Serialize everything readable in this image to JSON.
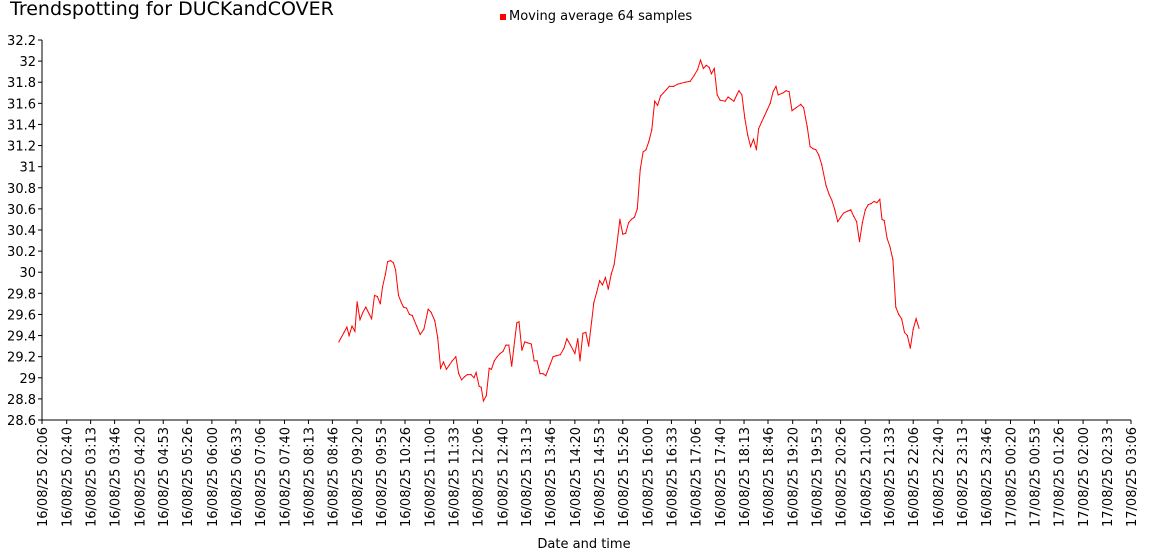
{
  "colors": {
    "series": "#ff0000",
    "axis": "#000000",
    "background": "#ffffff"
  },
  "chart_data": {
    "type": "line",
    "title": "Trendspotting for DUCKandCOVER",
    "xlabel": "Date and time",
    "ylabel": "",
    "ylim": [
      28.6,
      32.2
    ],
    "grid": false,
    "legend_position": "top",
    "yticks": [
      "28.6",
      "28.8",
      "29",
      "29.2",
      "29.4",
      "29.6",
      "29.8",
      "30",
      "30.2",
      "30.4",
      "30.6",
      "30.8",
      "31",
      "31.2",
      "31.4",
      "31.6",
      "31.8",
      "32",
      "32.2"
    ],
    "xticks": [
      "16/08/25 02:06",
      "16/08/25 02:40",
      "16/08/25 03:13",
      "16/08/25 03:46",
      "16/08/25 04:20",
      "16/08/25 04:53",
      "16/08/25 05:26",
      "16/08/25 06:00",
      "16/08/25 06:33",
      "16/08/25 07:06",
      "16/08/25 07:40",
      "16/08/25 08:13",
      "16/08/25 08:46",
      "16/08/25 09:20",
      "16/08/25 09:53",
      "16/08/25 10:26",
      "16/08/25 11:00",
      "16/08/25 11:33",
      "16/08/25 12:06",
      "16/08/25 12:40",
      "16/08/25 13:13",
      "16/08/25 13:46",
      "16/08/25 14:20",
      "16/08/25 14:53",
      "16/08/25 15:26",
      "16/08/25 16:00",
      "16/08/25 16:33",
      "16/08/25 17:06",
      "16/08/25 17:40",
      "16/08/25 18:13",
      "16/08/25 18:46",
      "16/08/25 19:20",
      "16/08/25 19:53",
      "16/08/25 20:26",
      "16/08/25 21:00",
      "16/08/25 21:33",
      "16/08/25 22:06",
      "16/08/25 22:40",
      "16/08/25 23:13",
      "16/08/25 23:46",
      "17/08/25 00:20",
      "17/08/25 00:53",
      "17/08/25 01:26",
      "17/08/25 02:00",
      "17/08/25 02:33",
      "17/08/25 03:06"
    ],
    "series": [
      {
        "name": "Moving average 64 samples",
        "color": "#ff0000",
        "points": [
          [
            "16/08/25 08:55",
            29.34
          ],
          [
            "16/08/25 09:02",
            29.43
          ],
          [
            "16/08/25 09:06",
            29.48
          ],
          [
            "16/08/25 09:09",
            29.4
          ],
          [
            "16/08/25 09:13",
            29.49
          ],
          [
            "16/08/25 09:17",
            29.44
          ],
          [
            "16/08/25 09:20",
            29.72
          ],
          [
            "16/08/25 09:24",
            29.55
          ],
          [
            "16/08/25 09:28",
            29.62
          ],
          [
            "16/08/25 09:32",
            29.67
          ],
          [
            "16/08/25 09:37",
            29.6
          ],
          [
            "16/08/25 09:40",
            29.56
          ],
          [
            "16/08/25 09:44",
            29.78
          ],
          [
            "16/08/25 09:48",
            29.77
          ],
          [
            "16/08/25 09:52",
            29.7
          ],
          [
            "16/08/25 09:55",
            29.86
          ],
          [
            "16/08/25 09:59",
            29.98
          ],
          [
            "16/08/25 10:02",
            30.1
          ],
          [
            "16/08/25 10:06",
            30.11
          ],
          [
            "16/08/25 10:10",
            30.09
          ],
          [
            "16/08/25 10:13",
            30.02
          ],
          [
            "16/08/25 10:17",
            29.78
          ],
          [
            "16/08/25 10:21",
            29.71
          ],
          [
            "16/08/25 10:24",
            29.67
          ],
          [
            "16/08/25 10:28",
            29.66
          ],
          [
            "16/08/25 10:32",
            29.6
          ],
          [
            "16/08/25 10:36",
            29.59
          ],
          [
            "16/08/25 10:42",
            29.49
          ],
          [
            "16/08/25 10:47",
            29.41
          ],
          [
            "16/08/25 10:52",
            29.46
          ],
          [
            "16/08/25 10:58",
            29.65
          ],
          [
            "16/08/25 11:02",
            29.62
          ],
          [
            "16/08/25 11:07",
            29.54
          ],
          [
            "16/08/25 11:11",
            29.38
          ],
          [
            "16/08/25 11:15",
            29.09
          ],
          [
            "16/08/25 11:19",
            29.15
          ],
          [
            "16/08/25 11:23",
            29.08
          ],
          [
            "16/08/25 11:27",
            29.12
          ],
          [
            "16/08/25 11:31",
            29.16
          ],
          [
            "16/08/25 11:36",
            29.2
          ],
          [
            "16/08/25 11:40",
            29.04
          ],
          [
            "16/08/25 11:44",
            28.98
          ],
          [
            "16/08/25 11:48",
            29.01
          ],
          [
            "16/08/25 11:52",
            29.03
          ],
          [
            "16/08/25 11:57",
            29.03
          ],
          [
            "16/08/25 12:01",
            29.0
          ],
          [
            "16/08/25 12:04",
            29.05
          ],
          [
            "16/08/25 12:08",
            28.92
          ],
          [
            "16/08/25 12:11",
            28.91
          ],
          [
            "16/08/25 12:14",
            28.78
          ],
          [
            "16/08/25 12:18",
            28.83
          ],
          [
            "16/08/25 12:22",
            29.09
          ],
          [
            "16/08/25 12:25",
            29.08
          ],
          [
            "16/08/25 12:29",
            29.16
          ],
          [
            "16/08/25 12:33",
            29.2
          ],
          [
            "16/08/25 12:37",
            29.23
          ],
          [
            "16/08/25 12:41",
            29.25
          ],
          [
            "16/08/25 12:45",
            29.31
          ],
          [
            "16/08/25 12:49",
            29.31
          ],
          [
            "16/08/25 12:53",
            29.11
          ],
          [
            "16/08/25 12:56",
            29.29
          ],
          [
            "16/08/25 13:00",
            29.52
          ],
          [
            "16/08/25 13:03",
            29.53
          ],
          [
            "16/08/25 13:07",
            29.26
          ],
          [
            "16/08/25 13:11",
            29.34
          ],
          [
            "16/08/25 13:15",
            29.33
          ],
          [
            "16/08/25 13:20",
            29.32
          ],
          [
            "16/08/25 13:24",
            29.16
          ],
          [
            "16/08/25 13:28",
            29.16
          ],
          [
            "16/08/25 13:32",
            29.04
          ],
          [
            "16/08/25 13:36",
            29.04
          ],
          [
            "16/08/25 13:40",
            29.02
          ],
          [
            "16/08/25 13:44",
            29.09
          ],
          [
            "16/08/25 13:50",
            29.2
          ],
          [
            "16/08/25 13:55",
            29.21
          ],
          [
            "16/08/25 14:00",
            29.22
          ],
          [
            "16/08/25 14:05",
            29.28
          ],
          [
            "16/08/25 14:09",
            29.37
          ],
          [
            "16/08/25 14:14",
            29.31
          ],
          [
            "16/08/25 14:20",
            29.23
          ],
          [
            "16/08/25 14:24",
            29.37
          ],
          [
            "16/08/25 14:27",
            29.16
          ],
          [
            "16/08/25 14:31",
            29.42
          ],
          [
            "16/08/25 14:35",
            29.43
          ],
          [
            "16/08/25 14:39",
            29.3
          ],
          [
            "16/08/25 14:43",
            29.53
          ],
          [
            "16/08/25 14:46",
            29.71
          ],
          [
            "16/08/25 14:50",
            29.81
          ],
          [
            "16/08/25 14:54",
            29.92
          ],
          [
            "16/08/25 14:58",
            29.88
          ],
          [
            "16/08/25 15:02",
            29.95
          ],
          [
            "16/08/25 15:06",
            29.84
          ],
          [
            "16/08/25 15:10",
            29.98
          ],
          [
            "16/08/25 15:14",
            30.07
          ],
          [
            "16/08/25 15:18",
            30.27
          ],
          [
            "16/08/25 15:22",
            30.5
          ],
          [
            "16/08/25 15:26",
            30.36
          ],
          [
            "16/08/25 15:30",
            30.37
          ],
          [
            "16/08/25 15:34",
            30.47
          ],
          [
            "16/08/25 15:38",
            30.5
          ],
          [
            "16/08/25 15:42",
            30.52
          ],
          [
            "16/08/25 15:46",
            30.6
          ],
          [
            "16/08/25 15:50",
            30.97
          ],
          [
            "16/08/25 15:54",
            31.14
          ],
          [
            "16/08/25 15:58",
            31.16
          ],
          [
            "16/08/25 16:02",
            31.24
          ],
          [
            "16/08/25 16:06",
            31.35
          ],
          [
            "16/08/25 16:10",
            31.62
          ],
          [
            "16/08/25 16:14",
            31.58
          ],
          [
            "16/08/25 16:18",
            31.67
          ],
          [
            "16/08/25 16:22",
            31.7
          ],
          [
            "16/08/25 16:26",
            31.73
          ],
          [
            "16/08/25 16:30",
            31.76
          ],
          [
            "16/08/25 16:36",
            31.76
          ],
          [
            "16/08/25 16:41",
            31.78
          ],
          [
            "16/08/25 16:46",
            31.79
          ],
          [
            "16/08/25 16:52",
            31.8
          ],
          [
            "16/08/25 16:59",
            31.81
          ],
          [
            "16/08/25 17:04",
            31.86
          ],
          [
            "16/08/25 17:09",
            31.92
          ],
          [
            "16/08/25 17:13",
            32.01
          ],
          [
            "16/08/25 17:17",
            31.93
          ],
          [
            "16/08/25 17:21",
            31.96
          ],
          [
            "16/08/25 17:25",
            31.94
          ],
          [
            "16/08/25 17:28",
            31.88
          ],
          [
            "16/08/25 17:32",
            31.93
          ],
          [
            "16/08/25 17:36",
            31.68
          ],
          [
            "16/08/25 17:40",
            31.63
          ],
          [
            "16/08/25 17:47",
            31.62
          ],
          [
            "16/08/25 17:51",
            31.66
          ],
          [
            "16/08/25 17:55",
            31.64
          ],
          [
            "16/08/25 17:59",
            31.62
          ],
          [
            "16/08/25 18:03",
            31.68
          ],
          [
            "16/08/25 18:06",
            31.72
          ],
          [
            "16/08/25 18:10",
            31.68
          ],
          [
            "16/08/25 18:14",
            31.46
          ],
          [
            "16/08/25 18:18",
            31.3
          ],
          [
            "16/08/25 18:22",
            31.19
          ],
          [
            "16/08/25 18:26",
            31.26
          ],
          [
            "16/08/25 18:30",
            31.16
          ],
          [
            "16/08/25 18:33",
            31.36
          ],
          [
            "16/08/25 18:37",
            31.42
          ],
          [
            "16/08/25 18:41",
            31.48
          ],
          [
            "16/08/25 18:45",
            31.54
          ],
          [
            "16/08/25 18:49",
            31.6
          ],
          [
            "16/08/25 18:53",
            31.71
          ],
          [
            "16/08/25 18:57",
            31.76
          ],
          [
            "16/08/25 19:00",
            31.68
          ],
          [
            "16/08/25 19:07",
            31.7
          ],
          [
            "16/08/25 19:11",
            31.72
          ],
          [
            "16/08/25 19:15",
            31.71
          ],
          [
            "16/08/25 19:19",
            31.53
          ],
          [
            "16/08/25 19:25",
            31.56
          ],
          [
            "16/08/25 19:31",
            31.59
          ],
          [
            "16/08/25 19:35",
            31.56
          ],
          [
            "16/08/25 19:40",
            31.38
          ],
          [
            "16/08/25 19:44",
            31.19
          ],
          [
            "16/08/25 19:48",
            31.17
          ],
          [
            "16/08/25 19:52",
            31.16
          ],
          [
            "16/08/25 19:56",
            31.11
          ],
          [
            "16/08/25 20:00",
            31.02
          ],
          [
            "16/08/25 20:06",
            30.82
          ],
          [
            "16/08/25 20:10",
            30.74
          ],
          [
            "16/08/25 20:14",
            30.68
          ],
          [
            "16/08/25 20:18",
            30.59
          ],
          [
            "16/08/25 20:22",
            30.48
          ],
          [
            "16/08/25 20:26",
            30.52
          ],
          [
            "16/08/25 20:30",
            30.56
          ],
          [
            "16/08/25 20:36",
            30.58
          ],
          [
            "16/08/25 20:40",
            30.59
          ],
          [
            "16/08/25 20:44",
            30.53
          ],
          [
            "16/08/25 20:48",
            30.48
          ],
          [
            "16/08/25 20:52",
            30.29
          ],
          [
            "16/08/25 20:56",
            30.47
          ],
          [
            "16/08/25 21:00",
            30.59
          ],
          [
            "16/08/25 21:04",
            30.64
          ],
          [
            "16/08/25 21:08",
            30.65
          ],
          [
            "16/08/25 21:12",
            30.67
          ],
          [
            "16/08/25 21:16",
            30.66
          ],
          [
            "16/08/25 21:20",
            30.69
          ],
          [
            "16/08/25 21:23",
            30.5
          ],
          [
            "16/08/25 21:26",
            30.49
          ],
          [
            "16/08/25 21:30",
            30.32
          ],
          [
            "16/08/25 21:34",
            30.24
          ],
          [
            "16/08/25 21:38",
            30.12
          ],
          [
            "16/08/25 21:42",
            29.67
          ],
          [
            "16/08/25 21:46",
            29.6
          ],
          [
            "16/08/25 21:50",
            29.56
          ],
          [
            "16/08/25 21:54",
            29.43
          ],
          [
            "16/08/25 21:58",
            29.4
          ],
          [
            "16/08/25 22:02",
            29.28
          ],
          [
            "16/08/25 22:06",
            29.46
          ],
          [
            "16/08/25 22:10",
            29.56
          ],
          [
            "16/08/25 22:14",
            29.47
          ]
        ]
      }
    ]
  }
}
